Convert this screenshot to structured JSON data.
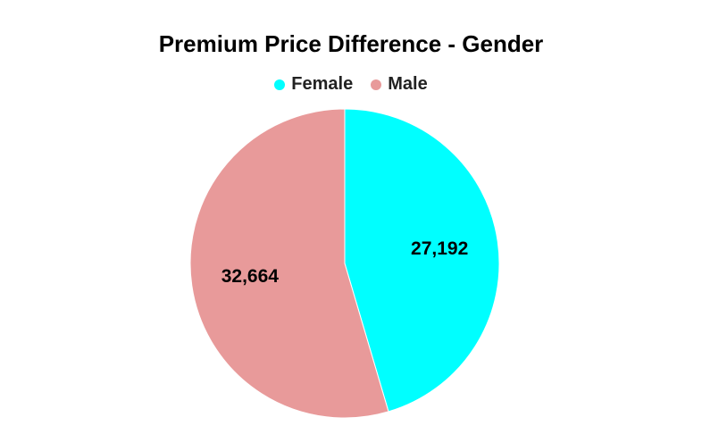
{
  "chart_data": {
    "type": "pie",
    "title": "Premium Price Difference - Gender",
    "legend_position": "top",
    "categories": [
      "Female",
      "Male"
    ],
    "values": [
      27192,
      32664
    ],
    "value_labels": [
      "27,192",
      "32,664"
    ],
    "colors": [
      "#00ffff",
      "#e89a9a"
    ]
  }
}
